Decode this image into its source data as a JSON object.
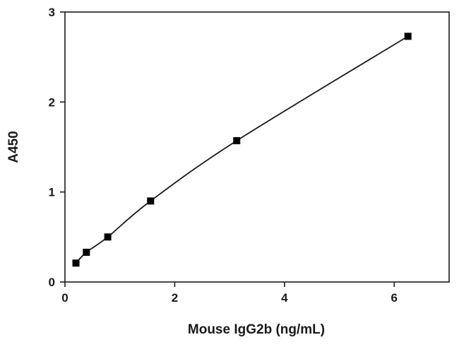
{
  "chart_data": {
    "type": "scatter",
    "title": "",
    "xlabel": "Mouse IgG2b (ng/mL)",
    "ylabel": "A450",
    "xlim": [
      0,
      7
    ],
    "ylim": [
      0,
      3
    ],
    "x_ticks": [
      0,
      2,
      4,
      6
    ],
    "y_ticks": [
      0,
      1,
      2,
      3
    ],
    "x_tick_labels": [
      "0",
      "2",
      "4",
      "6"
    ],
    "y_tick_labels": [
      "0",
      "1",
      "2",
      "3"
    ],
    "grid": false,
    "legend": "none",
    "fit_line": "smooth curve through points",
    "series": [
      {
        "x": [
          0.2,
          0.39,
          0.78,
          1.56,
          3.13,
          6.25
        ],
        "y": [
          0.21,
          0.33,
          0.5,
          0.9,
          1.57,
          2.73
        ]
      }
    ],
    "colors": {
      "marker": "#000000",
      "line": "#1a1a1a",
      "axis": "#1a1a1a"
    }
  }
}
